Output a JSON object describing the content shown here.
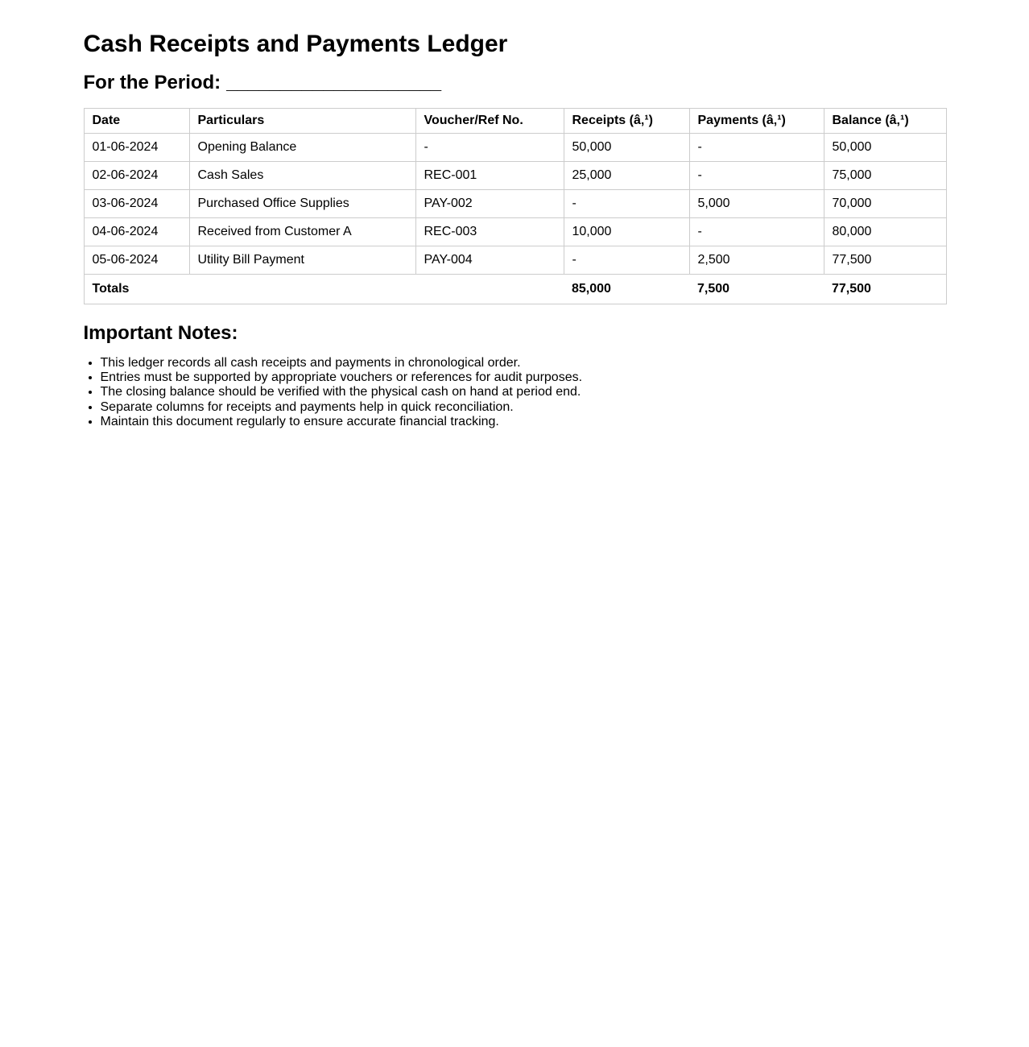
{
  "page": {
    "title": "Cash Receipts and Payments Ledger",
    "period_label": "For the Period:",
    "period_blank": "____________________"
  },
  "table": {
    "headers": [
      "Date",
      "Particulars",
      "Voucher/Ref No.",
      "Receipts (â‚¹)",
      "Payments (â‚¹)",
      "Balance (â‚¹)"
    ],
    "rows": [
      [
        "01-06-2024",
        "Opening Balance",
        "-",
        "50,000",
        "-",
        "50,000"
      ],
      [
        "02-06-2024",
        "Cash Sales",
        "REC-001",
        "25,000",
        "-",
        "75,000"
      ],
      [
        "03-06-2024",
        "Purchased Office Supplies",
        "PAY-002",
        "-",
        "5,000",
        "70,000"
      ],
      [
        "04-06-2024",
        "Received from Customer A",
        "REC-003",
        "10,000",
        "-",
        "80,000"
      ],
      [
        "05-06-2024",
        "Utility Bill Payment",
        "PAY-004",
        "-",
        "2,500",
        "77,500"
      ]
    ],
    "totals": {
      "label": "Totals",
      "receipts": "85,000",
      "payments": "7,500",
      "balance": "77,500"
    }
  },
  "notes": {
    "heading": "Important Notes:",
    "items": [
      "This ledger records all cash receipts and payments in chronological order.",
      "Entries must be supported by appropriate vouchers or references for audit purposes.",
      "The closing balance should be verified with the physical cash on hand at period end.",
      "Separate columns for receipts and payments help in quick reconciliation.",
      "Maintain this document regularly to ensure accurate financial tracking."
    ]
  },
  "colors": {
    "border": "#cccccc",
    "text": "#000000",
    "background": "#ffffff"
  }
}
